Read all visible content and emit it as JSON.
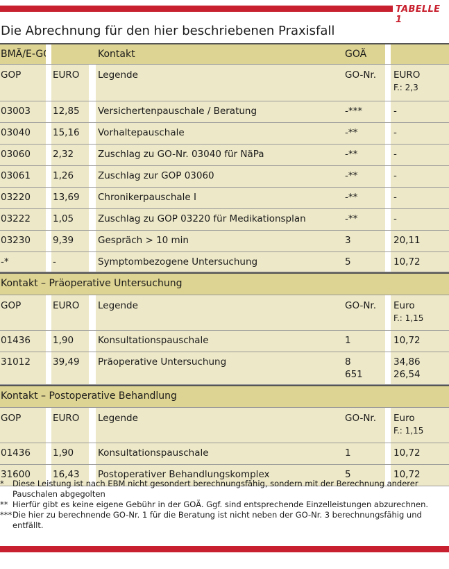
{
  "tag": "TABELLE 1",
  "title": "Die Abrechnung für den hier beschriebenen Praxisfall",
  "header": {
    "bma": "BMÄ/E-GO",
    "kontakt": "Kontakt",
    "goa": "GOÄ"
  },
  "sections": [
    {
      "heading": null,
      "cols": {
        "c1": "GOP",
        "c2": "EURO",
        "c3": "Legende",
        "c4": "GO-Nr.",
        "c5a": "EURO",
        "c5b": "F.: 2,3"
      },
      "rows": [
        {
          "gop": "03003",
          "euro": "12,85",
          "legende": "Versichertenpauschale / Beratung",
          "gonr": "-***",
          "goeuro": "-"
        },
        {
          "gop": "03040",
          "euro": "15,16",
          "legende": "Vorhaltepauschale",
          "gonr": "-**",
          "goeuro": "-"
        },
        {
          "gop": "03060",
          "euro": "2,32",
          "legende": "Zuschlag zu GO-Nr. 03040 für NäPa",
          "gonr": "-**",
          "goeuro": "-"
        },
        {
          "gop": "03061",
          "euro": "1,26",
          "legende": "Zuschlag zur GOP 03060",
          "gonr": "-**",
          "goeuro": "-"
        },
        {
          "gop": "03220",
          "euro": "13,69",
          "legende": "Chronikerpauschale I",
          "gonr": "-**",
          "goeuro": "-"
        },
        {
          "gop": "03222",
          "euro": "1,05",
          "legende": "Zuschlag zu GOP 03220 für Medikationsplan",
          "gonr": "-**",
          "goeuro": "-"
        },
        {
          "gop": "03230",
          "euro": "9,39",
          "legende": "Gespräch > 10 min",
          "gonr": "3",
          "goeuro": "20,11"
        },
        {
          "gop": "-*",
          "euro": "-",
          "legende": "Symptombezogene Untersuchung",
          "gonr": "5",
          "goeuro": "10,72"
        }
      ]
    },
    {
      "heading": "Kontakt – Präoperative Untersuchung",
      "cols": {
        "c1": "GOP",
        "c2": "EURO",
        "c3": "Legende",
        "c4": "GO-Nr.",
        "c5a": "Euro",
        "c5b": "F.: 1,15"
      },
      "rows": [
        {
          "gop": "01436",
          "euro": "1,90",
          "legende": "Konsultationspauschale",
          "gonr": "1",
          "goeuro": "10,72"
        },
        {
          "gop": "31012",
          "euro": "39,49",
          "legende": "Präoperative Untersuchung",
          "gonr": "8",
          "goeuro": "34,86",
          "gonr2": "651",
          "goeuro2": "26,54"
        }
      ]
    },
    {
      "heading": "Kontakt – Postoperative Behandlung",
      "cols": {
        "c1": "GOP",
        "c2": "EURO",
        "c3": "Legende",
        "c4": "GO-Nr.",
        "c5a": "Euro",
        "c5b": "F.: 1,15"
      },
      "rows": [
        {
          "gop": "01436",
          "euro": "1,90",
          "legende": "Konsultationspauschale",
          "gonr": "1",
          "goeuro": "10,72"
        },
        {
          "gop": "31600",
          "euro": "16,43",
          "legende": "Postoperativer Behandlungskomplex",
          "gonr": "5",
          "goeuro": "10,72"
        }
      ]
    }
  ],
  "footnotes": [
    {
      "mark": "*",
      "text": "Diese Leistung ist nach EBM nicht gesondert berechnungsfähig, sondern mit der Berechnung anderer Pauschalen abgegolten"
    },
    {
      "mark": "**",
      "text": "Hierfür gibt es keine eigene Gebühr in der GOÄ. Ggf. sind entsprechende Einzelleistungen abzurechnen."
    },
    {
      "mark": "***",
      "text": "Die hier zu berechnende GO-Nr. 1 für die Beratung ist nicht neben der GO-Nr. 3 berechnungsfähig und entfällt."
    }
  ],
  "colors": {
    "accent": "#c8202e",
    "head_fill": "#ddd392",
    "row_fill": "#ede8c8"
  }
}
